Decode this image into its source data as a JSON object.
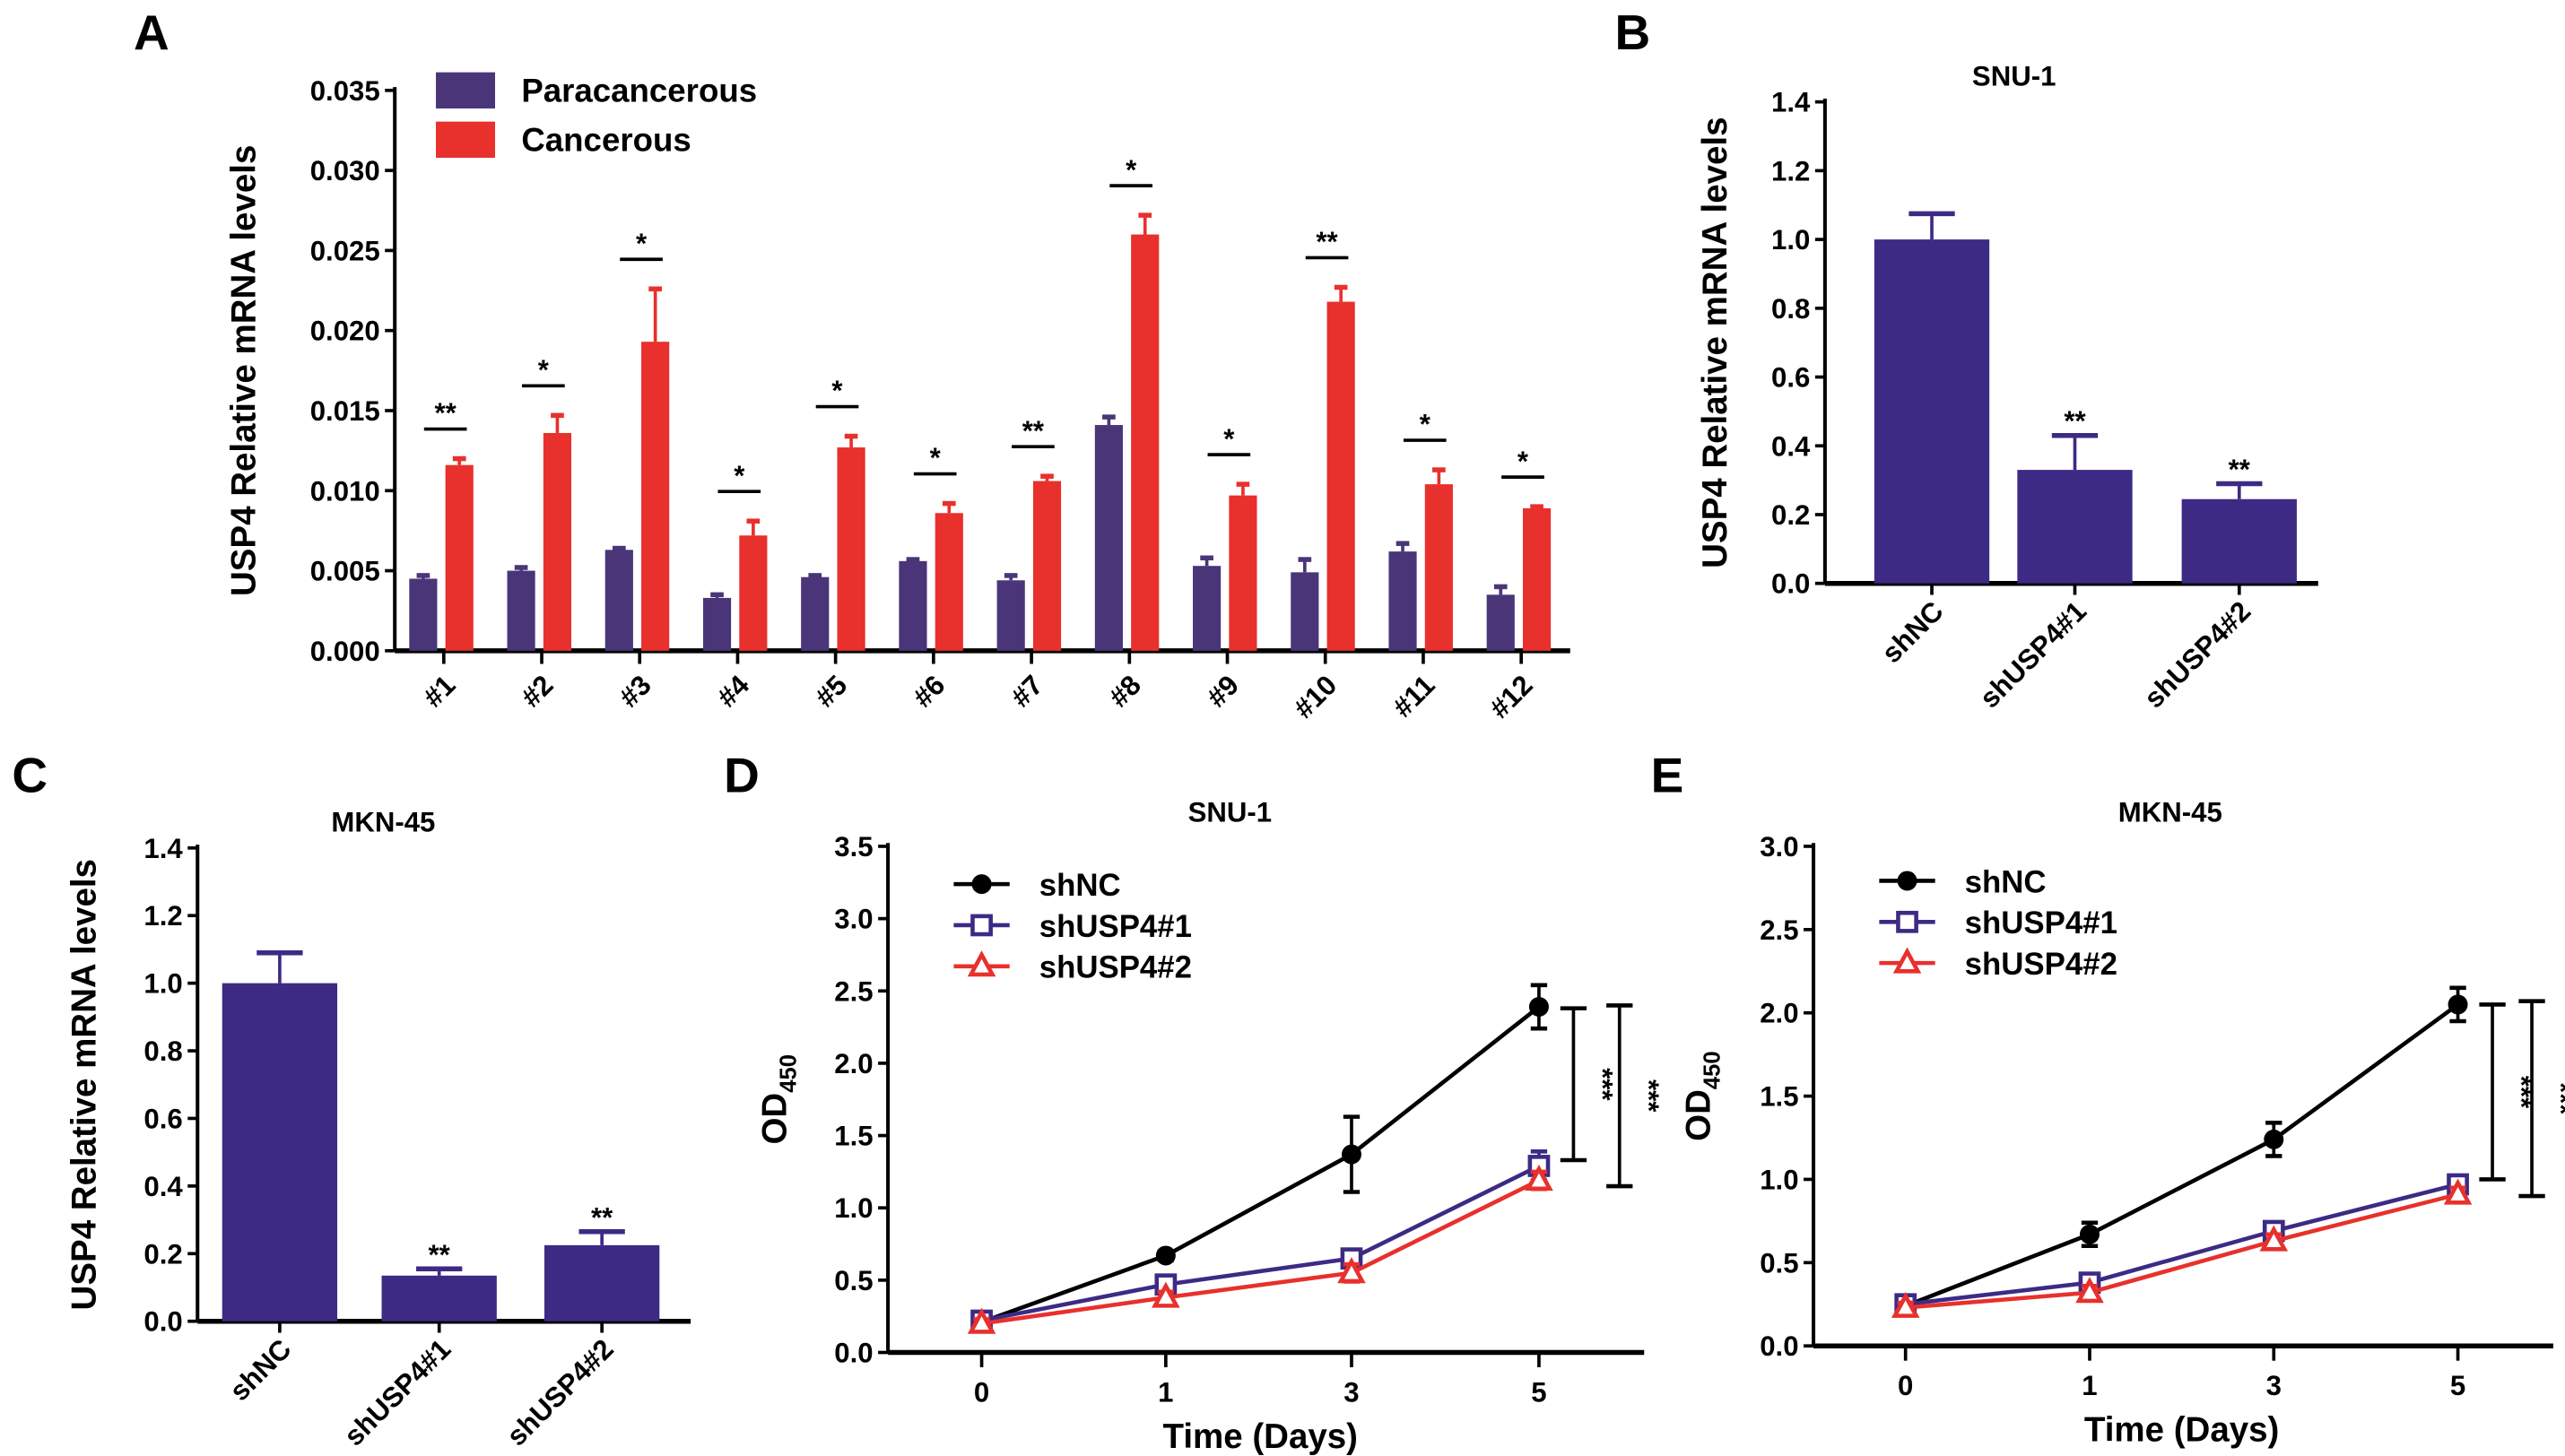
{
  "colors": {
    "paracancerous": "#4a3578",
    "cancerous": "#e8302c",
    "shNC": "#000000",
    "shUSP4_1": "#3d2a85",
    "shUSP4_2": "#e8302c"
  },
  "chart_data": [
    {
      "panel": "A",
      "type": "bar",
      "title": "",
      "ylabel": "USP4 Relative mRNA levels",
      "xlabel": "",
      "ylim": [
        0,
        0.035
      ],
      "yticks": [
        "0.000",
        "0.005",
        "0.010",
        "0.015",
        "0.020",
        "0.025",
        "0.030",
        "0.035"
      ],
      "categories": [
        "#1",
        "#2",
        "#3",
        "#4",
        "#5",
        "#6",
        "#7",
        "#8",
        "#9",
        "#10",
        "#11",
        "#12"
      ],
      "legend_position": "top-left",
      "series": [
        {
          "name": "Paracancerous",
          "values": [
            0.0045,
            0.005,
            0.0063,
            0.0033,
            0.0046,
            0.0056,
            0.0044,
            0.0141,
            0.0053,
            0.0049,
            0.0062,
            0.0035
          ],
          "errors": [
            0.0002,
            0.0002,
            0.0001,
            0.0002,
            0.0001,
            0.0001,
            0.0003,
            0.0005,
            0.0005,
            0.0008,
            0.0005,
            0.0005
          ]
        },
        {
          "name": "Cancerous",
          "values": [
            0.0116,
            0.0136,
            0.0193,
            0.0072,
            0.0127,
            0.0086,
            0.0106,
            0.026,
            0.0097,
            0.0218,
            0.0104,
            0.0089
          ],
          "errors": [
            0.0004,
            0.0011,
            0.0033,
            0.0009,
            0.0007,
            0.0006,
            0.0003,
            0.0012,
            0.0007,
            0.0009,
            0.0009,
            0.0001
          ]
        }
      ],
      "significance": [
        "**",
        "*",
        "*",
        "*",
        "*",
        "*",
        "**",
        "*",
        "*",
        "**",
        "*",
        "*"
      ]
    },
    {
      "panel": "B",
      "type": "bar",
      "title": "SNU-1",
      "ylabel": "USP4 Relative mRNA levels",
      "ylim": [
        0,
        1.4
      ],
      "yticks": [
        "0.0",
        "0.2",
        "0.4",
        "0.6",
        "0.8",
        "1.0",
        "1.2",
        "1.4"
      ],
      "categories": [
        "shNC",
        "shUSP4#1",
        "shUSP4#2"
      ],
      "values": [
        1.0,
        0.33,
        0.245
      ],
      "errors": [
        0.075,
        0.1,
        0.045
      ],
      "significance": [
        "",
        "**",
        "**"
      ]
    },
    {
      "panel": "C",
      "type": "bar",
      "title": "MKN-45",
      "ylabel": "USP4 Relative mRNA levels",
      "ylim": [
        0,
        1.4
      ],
      "yticks": [
        "0.0",
        "0.2",
        "0.4",
        "0.6",
        "0.8",
        "1.0",
        "1.2",
        "1.4"
      ],
      "categories": [
        "shNC",
        "shUSP4#1",
        "shUSP4#2"
      ],
      "values": [
        1.0,
        0.135,
        0.225
      ],
      "errors": [
        0.09,
        0.02,
        0.04
      ],
      "significance": [
        "",
        "**",
        "**"
      ]
    },
    {
      "panel": "D",
      "type": "line",
      "title": "SNU-1",
      "ylabel": "OD",
      "ylabel_sub": "450",
      "xlabel": "Time (Days)",
      "ylim": [
        0,
        3.5
      ],
      "yticks": [
        "0.0",
        "0.5",
        "1.0",
        "1.5",
        "2.0",
        "2.5",
        "3.0",
        "3.5"
      ],
      "x": [
        "0",
        "1",
        "3",
        "5"
      ],
      "legend_position": "top-left",
      "series": [
        {
          "name": "shNC",
          "marker": "circle",
          "values": [
            0.21,
            0.67,
            1.37,
            2.39
          ],
          "errors": [
            0.02,
            0.03,
            0.26,
            0.15
          ]
        },
        {
          "name": "shUSP4#1",
          "marker": "square",
          "values": [
            0.22,
            0.47,
            0.65,
            1.29
          ],
          "errors": [
            0.03,
            0.05,
            0.05,
            0.1
          ]
        },
        {
          "name": "shUSP4#2",
          "marker": "triangle",
          "values": [
            0.2,
            0.38,
            0.55,
            1.19
          ],
          "errors": [
            0.03,
            0.04,
            0.06,
            0.06
          ]
        }
      ],
      "brackets": [
        {
          "from": 2.38,
          "to": 1.33,
          "label": "***"
        },
        {
          "from": 2.4,
          "to": 1.15,
          "label": "***"
        }
      ]
    },
    {
      "panel": "E",
      "type": "line",
      "title": "MKN-45",
      "ylabel": "OD",
      "ylabel_sub": "450",
      "xlabel": "Time (Days)",
      "ylim": [
        0,
        3.0
      ],
      "yticks": [
        "0.0",
        "0.5",
        "1.0",
        "1.5",
        "2.0",
        "2.5",
        "3.0"
      ],
      "x": [
        "0",
        "1",
        "3",
        "5"
      ],
      "legend_position": "top-left",
      "series": [
        {
          "name": "shNC",
          "marker": "circle",
          "values": [
            0.24,
            0.67,
            1.24,
            2.05
          ],
          "errors": [
            0.02,
            0.07,
            0.1,
            0.1
          ]
        },
        {
          "name": "shUSP4#1",
          "marker": "square",
          "values": [
            0.25,
            0.38,
            0.69,
            0.97
          ],
          "errors": [
            0.03,
            0.04,
            0.05,
            0.04
          ]
        },
        {
          "name": "shUSP4#2",
          "marker": "triangle",
          "values": [
            0.23,
            0.32,
            0.63,
            0.91
          ],
          "errors": [
            0.03,
            0.04,
            0.04,
            0.04
          ]
        }
      ],
      "brackets": [
        {
          "from": 2.05,
          "to": 1.0,
          "label": "***"
        },
        {
          "from": 2.07,
          "to": 0.9,
          "label": "***"
        }
      ]
    }
  ]
}
